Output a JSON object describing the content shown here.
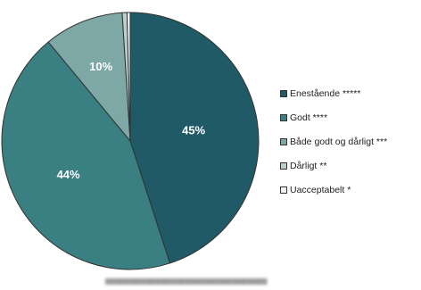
{
  "chart_data": {
    "type": "pie",
    "slices": [
      {
        "label": "Enestående *****",
        "value": 45,
        "display": "45%",
        "color": "#1f5a66"
      },
      {
        "label": "Godt ****",
        "value": 44,
        "display": "44%",
        "color": "#3a7f82"
      },
      {
        "label": "Både godt og dårligt ***",
        "value": 10,
        "display": "10%",
        "color": "#7ea8a6"
      },
      {
        "label": "Dårligt **",
        "value": 0.6,
        "display": "",
        "color": "#b9d0ce"
      },
      {
        "label": "Uacceptabelt *",
        "value": 0.4,
        "display": "",
        "color": "#eef3f3"
      }
    ],
    "legend_position": "right",
    "title": ""
  },
  "colors": {
    "edge": "#333333",
    "label_text": "#ffffff"
  }
}
